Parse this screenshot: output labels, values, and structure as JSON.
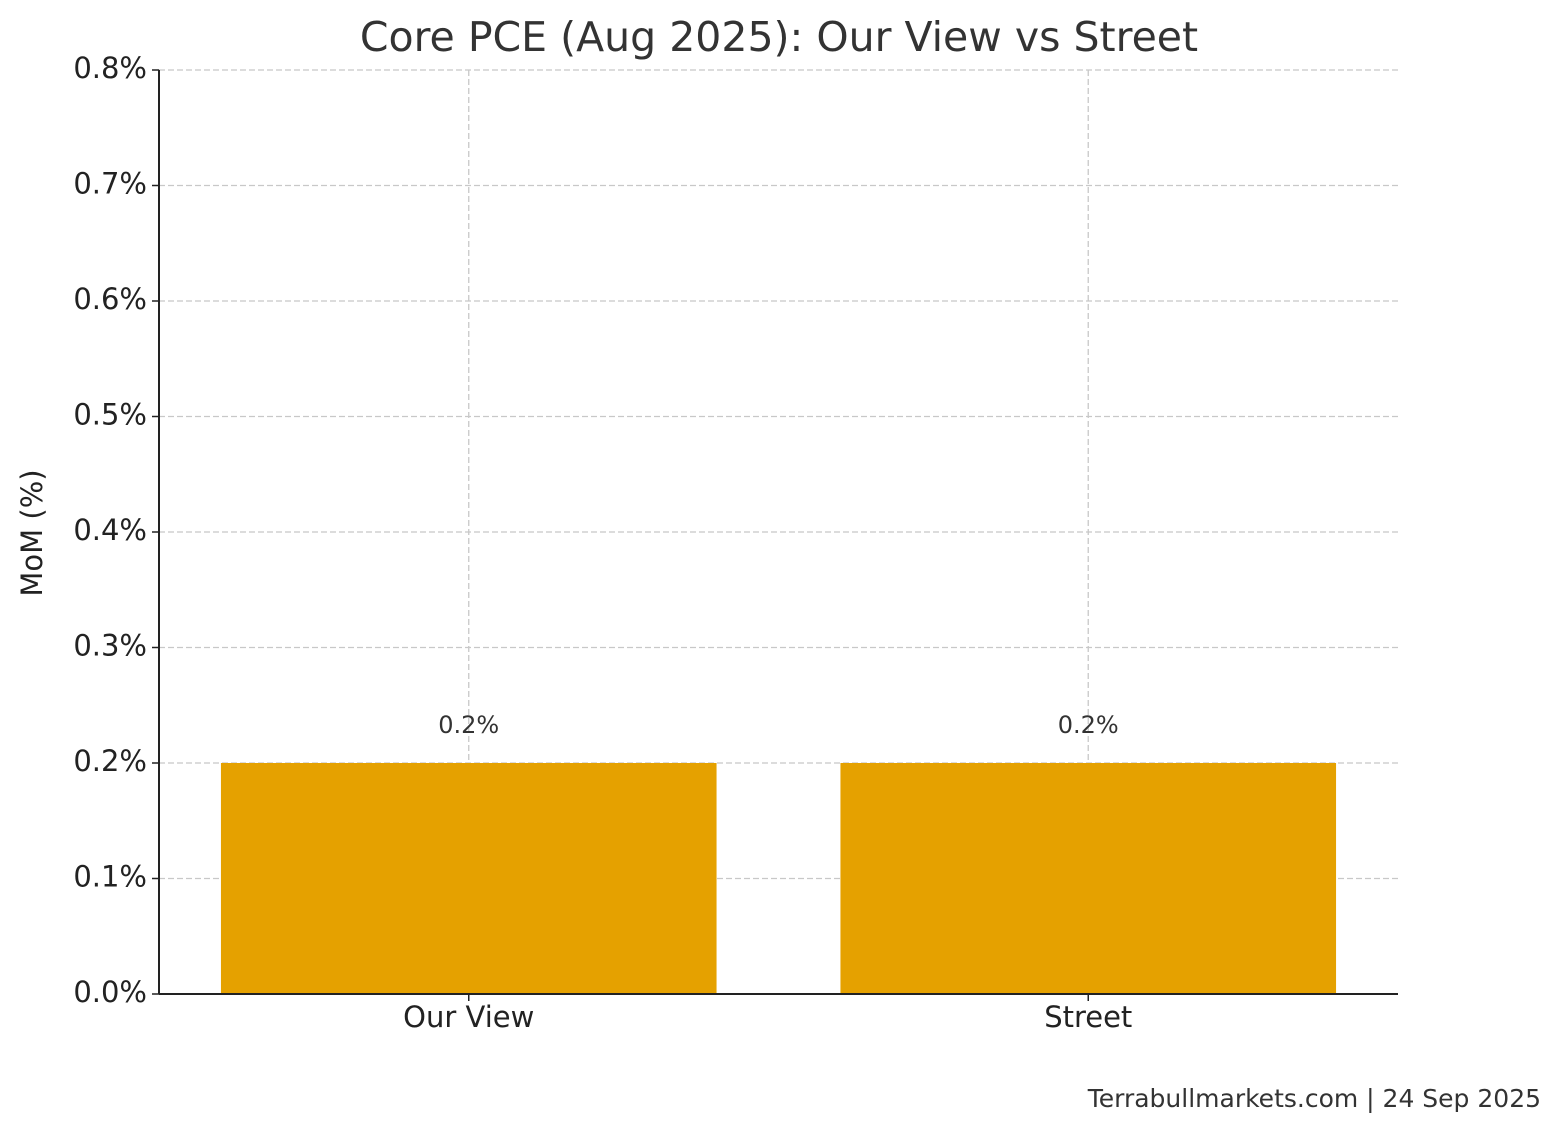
{
  "chart_data": {
    "type": "bar",
    "title": "Core PCE (Aug 2025): Our View vs Street",
    "y_label": "MoM (%)",
    "categories": [
      "Our View",
      "Street"
    ],
    "values": [
      0.2,
      0.2
    ],
    "value_labels": [
      "0.2%",
      "0.2%"
    ],
    "color": "#e5a100",
    "ylim": [
      0,
      0.8
    ],
    "yticks": [
      {
        "value": 0,
        "label": "0.0%"
      },
      {
        "value": 0.1,
        "label": "0.1%"
      },
      {
        "value": 0.2,
        "label": "0.2%"
      },
      {
        "value": 0.3,
        "label": "0.3%"
      },
      {
        "value": 0.4,
        "label": "0.4%"
      },
      {
        "value": 0.5,
        "label": "0.5%"
      },
      {
        "value": 0.6,
        "label": "0.6%"
      },
      {
        "value": 0.7,
        "label": "0.7%"
      },
      {
        "value": 0.8,
        "label": "0.8%"
      }
    ],
    "grid": true,
    "annotation": "Terrabullmarkets.com | 24 Sep 2025"
  }
}
